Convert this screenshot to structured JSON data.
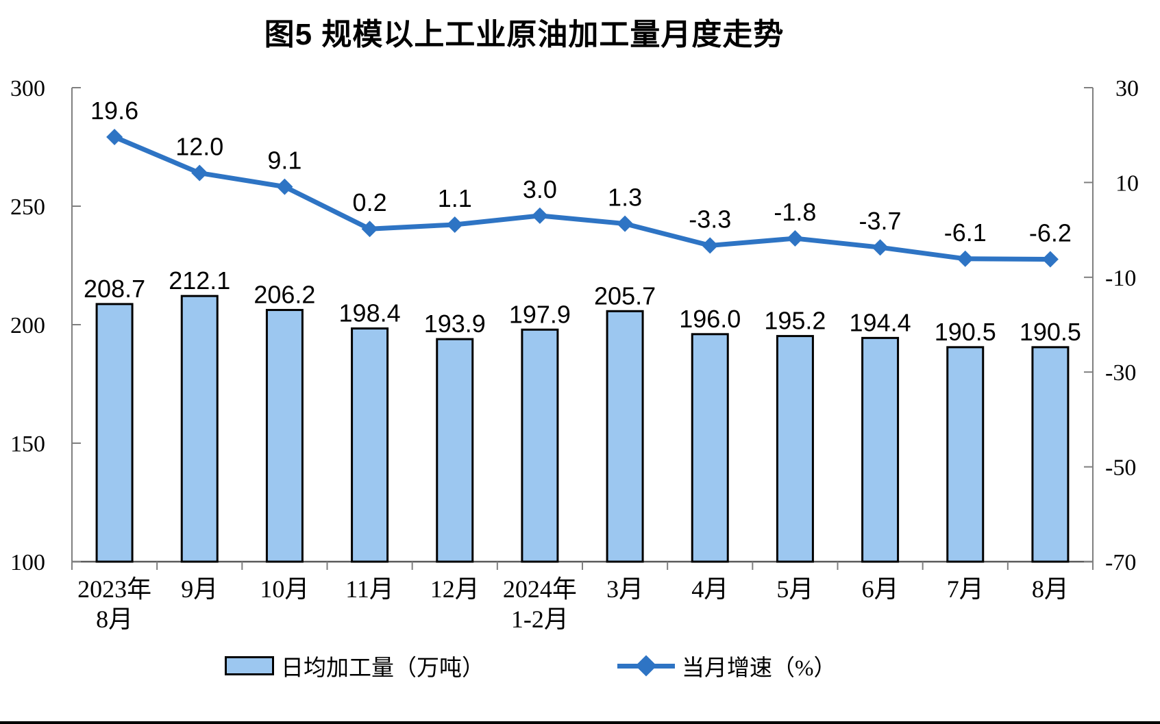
{
  "title": "图5 规模以上工业原油加工量月度走势",
  "legend": {
    "bar_label": "日均加工量（万吨）",
    "line_label": "当月增速（%）"
  },
  "colors": {
    "bar_fill": "#9CC7F0",
    "bar_stroke": "#000000",
    "line": "#2E74C4",
    "axis": "#7F7F7F",
    "baseline": "#595959",
    "label_text": "#000000"
  },
  "chart_data": {
    "type": "bar",
    "subtype": "bar-line-combo",
    "title": "图5 规模以上工业原油加工量月度走势",
    "categories": [
      [
        "2023年",
        "8月"
      ],
      [
        "9月"
      ],
      [
        "10月"
      ],
      [
        "11月"
      ],
      [
        "12月"
      ],
      [
        "2024年",
        "1-2月"
      ],
      [
        "3月"
      ],
      [
        "4月"
      ],
      [
        "5月"
      ],
      [
        "6月"
      ],
      [
        "7月"
      ],
      [
        "8月"
      ]
    ],
    "series": [
      {
        "name": "日均加工量（万吨）",
        "type": "bar",
        "axis": "left",
        "values": [
          208.7,
          212.1,
          206.2,
          198.4,
          193.9,
          197.9,
          205.7,
          196.0,
          195.2,
          194.4,
          190.5,
          190.5
        ]
      },
      {
        "name": "当月增速（%）",
        "type": "line",
        "axis": "right",
        "values": [
          19.6,
          12.0,
          9.1,
          0.2,
          1.1,
          3.0,
          1.3,
          -3.3,
          -1.8,
          -3.7,
          -6.1,
          -6.2
        ]
      }
    ],
    "left_axis": {
      "min": 100,
      "max": 300,
      "ticks": [
        300,
        250,
        200,
        150,
        100
      ]
    },
    "right_axis": {
      "min": -70,
      "max": 30,
      "ticks": [
        30,
        10,
        -10,
        -30,
        -50,
        -70
      ]
    },
    "xlabel": "",
    "ylabel_left": "",
    "ylabel_right": "",
    "grid": "off",
    "legend_position": "bottom",
    "value_label_decimals": 1
  }
}
